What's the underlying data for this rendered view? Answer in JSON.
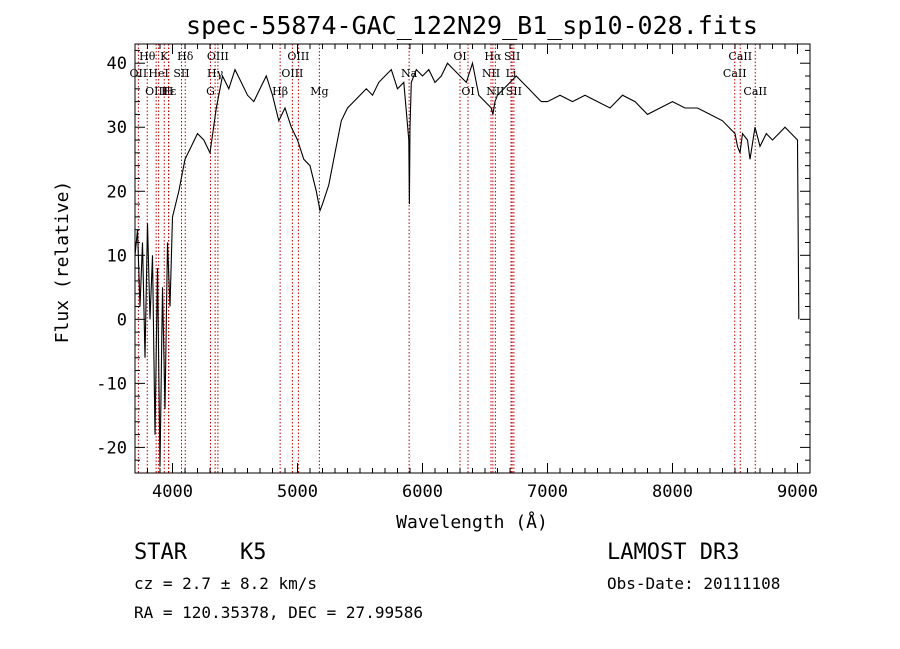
{
  "chart_data": {
    "type": "line",
    "title": "spec-55874-GAC_122N29_B1_sp10-028.fits",
    "xlabel": "Wavelength (Å)",
    "ylabel": "Flux (relative)",
    "xlim": [
      3700,
      9100
    ],
    "ylim": [
      -24,
      43
    ],
    "xticks": [
      4000,
      5000,
      6000,
      7000,
      8000,
      9000
    ],
    "yticks": [
      -20,
      -10,
      0,
      10,
      20,
      30,
      40
    ],
    "series": [
      {
        "name": "flux",
        "x": [
          3700,
          3720,
          3740,
          3760,
          3780,
          3800,
          3820,
          3840,
          3860,
          3880,
          3900,
          3920,
          3940,
          3960,
          3980,
          4000,
          4050,
          4100,
          4150,
          4200,
          4250,
          4300,
          4350,
          4400,
          4450,
          4500,
          4550,
          4600,
          4650,
          4700,
          4750,
          4800,
          4850,
          4900,
          4950,
          5000,
          5050,
          5100,
          5150,
          5180,
          5200,
          5250,
          5300,
          5350,
          5400,
          5450,
          5500,
          5550,
          5600,
          5650,
          5700,
          5750,
          5800,
          5850,
          5890,
          5895,
          5900,
          5910,
          5950,
          6000,
          6050,
          6100,
          6150,
          6200,
          6250,
          6300,
          6350,
          6400,
          6450,
          6500,
          6550,
          6563,
          6580,
          6600,
          6650,
          6700,
          6750,
          6800,
          6850,
          6900,
          6950,
          7000,
          7100,
          7200,
          7300,
          7400,
          7500,
          7600,
          7700,
          7800,
          7900,
          8000,
          8100,
          8200,
          8300,
          8400,
          8450,
          8500,
          8520,
          8540,
          8560,
          8600,
          8620,
          8660,
          8700,
          8750,
          8800,
          8850,
          8900,
          8950,
          9000,
          9010
        ],
        "values": [
          10,
          14,
          2,
          12,
          -6,
          15,
          0,
          10,
          -18,
          8,
          -23,
          5,
          -14,
          12,
          2,
          16,
          20,
          25,
          27,
          29,
          28,
          26,
          33,
          38,
          36,
          39,
          37,
          35,
          34,
          36,
          38,
          35,
          31,
          33,
          30,
          28,
          25,
          24,
          20,
          17,
          18,
          21,
          26,
          31,
          33,
          34,
          35,
          36,
          35,
          37,
          38,
          39,
          36,
          37,
          28,
          18,
          30,
          37,
          39,
          38,
          39,
          37,
          38,
          40,
          39,
          38,
          37,
          40,
          35,
          34,
          33,
          32,
          34,
          35,
          36,
          37,
          38,
          37,
          36,
          35,
          34,
          34,
          35,
          34,
          35,
          34,
          33,
          35,
          34,
          32,
          33,
          34,
          33,
          33,
          32,
          31,
          30,
          29,
          27,
          26,
          29,
          28,
          25,
          30,
          27,
          29,
          28,
          29,
          30,
          29,
          28,
          0
        ]
      }
    ],
    "lines": [
      {
        "name": "Hθ",
        "x": 3798,
        "row": 0
      },
      {
        "name": "OII",
        "x": 3727,
        "row": 1
      },
      {
        "name": "OIII",
        "x": 3869,
        "row": 2
      },
      {
        "name": "K",
        "x": 3934,
        "row": 0
      },
      {
        "name": "HeI",
        "x": 3889,
        "row": 1
      },
      {
        "name": "Hε",
        "x": 3970,
        "row": 2
      },
      {
        "name": "H",
        "x": 3968,
        "row": 2
      },
      {
        "name": "Hδ",
        "x": 4102,
        "row": 0
      },
      {
        "name": "SII",
        "x": 4072,
        "row": 1
      },
      {
        "name": "OIII",
        "x": 4363,
        "row": 0
      },
      {
        "name": "Hγ",
        "x": 4341,
        "row": 1
      },
      {
        "name": "G",
        "x": 4304,
        "row": 2
      },
      {
        "name": "Hβ",
        "x": 4861,
        "row": 2
      },
      {
        "name": "OIII",
        "x": 5007,
        "row": 0
      },
      {
        "name": "OIII",
        "x": 4959,
        "row": 1
      },
      {
        "name": "Mg",
        "x": 5175,
        "row": 2
      },
      {
        "name": "Na",
        "x": 5893,
        "row": 1
      },
      {
        "name": "OI",
        "x": 6300,
        "row": 0
      },
      {
        "name": "OI",
        "x": 6364,
        "row": 2
      },
      {
        "name": "Hα",
        "x": 6563,
        "row": 0
      },
      {
        "name": "NII",
        "x": 6548,
        "row": 1
      },
      {
        "name": "NII",
        "x": 6583,
        "row": 2
      },
      {
        "name": "SII",
        "x": 6717,
        "row": 0
      },
      {
        "name": "Li",
        "x": 6708,
        "row": 1
      },
      {
        "name": "SII",
        "x": 6731,
        "row": 2
      },
      {
        "name": "CaII",
        "x": 8542,
        "row": 0
      },
      {
        "name": "CaII",
        "x": 8498,
        "row": 1
      },
      {
        "name": "CaII",
        "x": 8662,
        "row": 2
      }
    ]
  },
  "info": {
    "class": "STAR",
    "subclass": "K5",
    "survey": "LAMOST DR3",
    "cz": "cz = 2.7 ± 8.2 km/s",
    "obsdate": "Obs-Date: 20111108",
    "radec": "RA = 120.35378, DEC =  27.99586"
  }
}
